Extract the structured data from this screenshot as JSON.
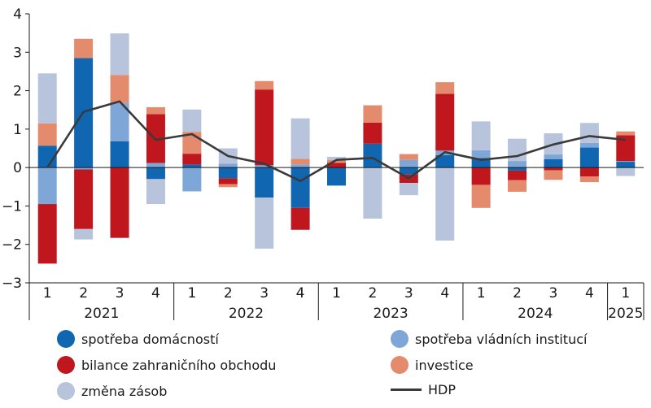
{
  "chart_data": {
    "type": "bar",
    "stacked": true,
    "categories": [
      "1",
      "2",
      "3",
      "4",
      "1",
      "2",
      "3",
      "4",
      "1",
      "2",
      "3",
      "4",
      "1",
      "2",
      "3",
      "4",
      "1"
    ],
    "years": [
      {
        "label": "2021",
        "span": 4
      },
      {
        "label": "2022",
        "span": 4
      },
      {
        "label": "2023",
        "span": 4
      },
      {
        "label": "2024",
        "span": 4
      },
      {
        "label": "2025",
        "span": 1
      }
    ],
    "ylim": [
      -3,
      4
    ],
    "yticks": [
      "4",
      "3",
      "2",
      "1",
      "0",
      "−1",
      "−2",
      "−3"
    ],
    "ytick_values": [
      4,
      3,
      2,
      1,
      0,
      -1,
      -2,
      -3
    ],
    "series": [
      {
        "name": "spotřeba domácností",
        "color": "#1066b1",
        "values": [
          0.57,
          2.85,
          0.68,
          -0.3,
          0.08,
          -0.28,
          -0.78,
          -1.05,
          -0.47,
          0.62,
          -0.18,
          0.32,
          0.25,
          -0.08,
          0.22,
          0.52,
          0.15
        ]
      },
      {
        "name": "spotřeba vládních institucí",
        "color": "#7ea7d8",
        "values": [
          -0.95,
          -0.05,
          1.0,
          0.12,
          -0.62,
          0.1,
          0.06,
          0.08,
          0.0,
          0.0,
          0.2,
          0.12,
          0.2,
          0.17,
          0.12,
          0.12,
          0.02
        ]
      },
      {
        "name": "bilance zahraničního obchodu",
        "color": "#c0171f",
        "values": [
          -1.55,
          -1.55,
          -1.83,
          1.27,
          0.28,
          -0.15,
          1.97,
          -0.57,
          0.12,
          0.55,
          -0.22,
          1.48,
          -0.45,
          -0.25,
          -0.07,
          -0.23,
          0.67
        ]
      },
      {
        "name": "investice",
        "color": "#e48a6d",
        "values": [
          0.58,
          0.5,
          0.73,
          0.18,
          0.57,
          -0.08,
          0.22,
          0.15,
          0.08,
          0.45,
          0.15,
          0.3,
          -0.6,
          -0.3,
          -0.25,
          -0.15,
          0.1
        ]
      },
      {
        "name": "změna zásob",
        "color": "#b7c4db",
        "values": [
          1.3,
          -0.27,
          1.08,
          -0.65,
          0.58,
          0.4,
          -1.33,
          1.05,
          0.08,
          -1.33,
          -0.32,
          -1.9,
          0.75,
          0.58,
          0.55,
          0.52,
          -0.22
        ]
      }
    ],
    "line": {
      "name": "HDP",
      "color": "#3a3a3a",
      "values": [
        0.0,
        1.45,
        1.72,
        0.72,
        0.87,
        0.3,
        0.1,
        -0.35,
        0.2,
        0.25,
        -0.28,
        0.4,
        0.2,
        0.3,
        0.6,
        0.82,
        0.72
      ]
    }
  },
  "legend": [
    {
      "label": "spotřeba domácností",
      "color": "#1066b1",
      "kind": "dot"
    },
    {
      "label": "spotřeba vládních institucí",
      "color": "#7ea7d8",
      "kind": "dot"
    },
    {
      "label": "bilance zahraničního obchodu",
      "color": "#c0171f",
      "kind": "dot"
    },
    {
      "label": "investice",
      "color": "#e48a6d",
      "kind": "dot"
    },
    {
      "label": "změna zásob",
      "color": "#b7c4db",
      "kind": "dot"
    },
    {
      "label": "HDP",
      "color": "#3a3a3a",
      "kind": "line"
    }
  ]
}
